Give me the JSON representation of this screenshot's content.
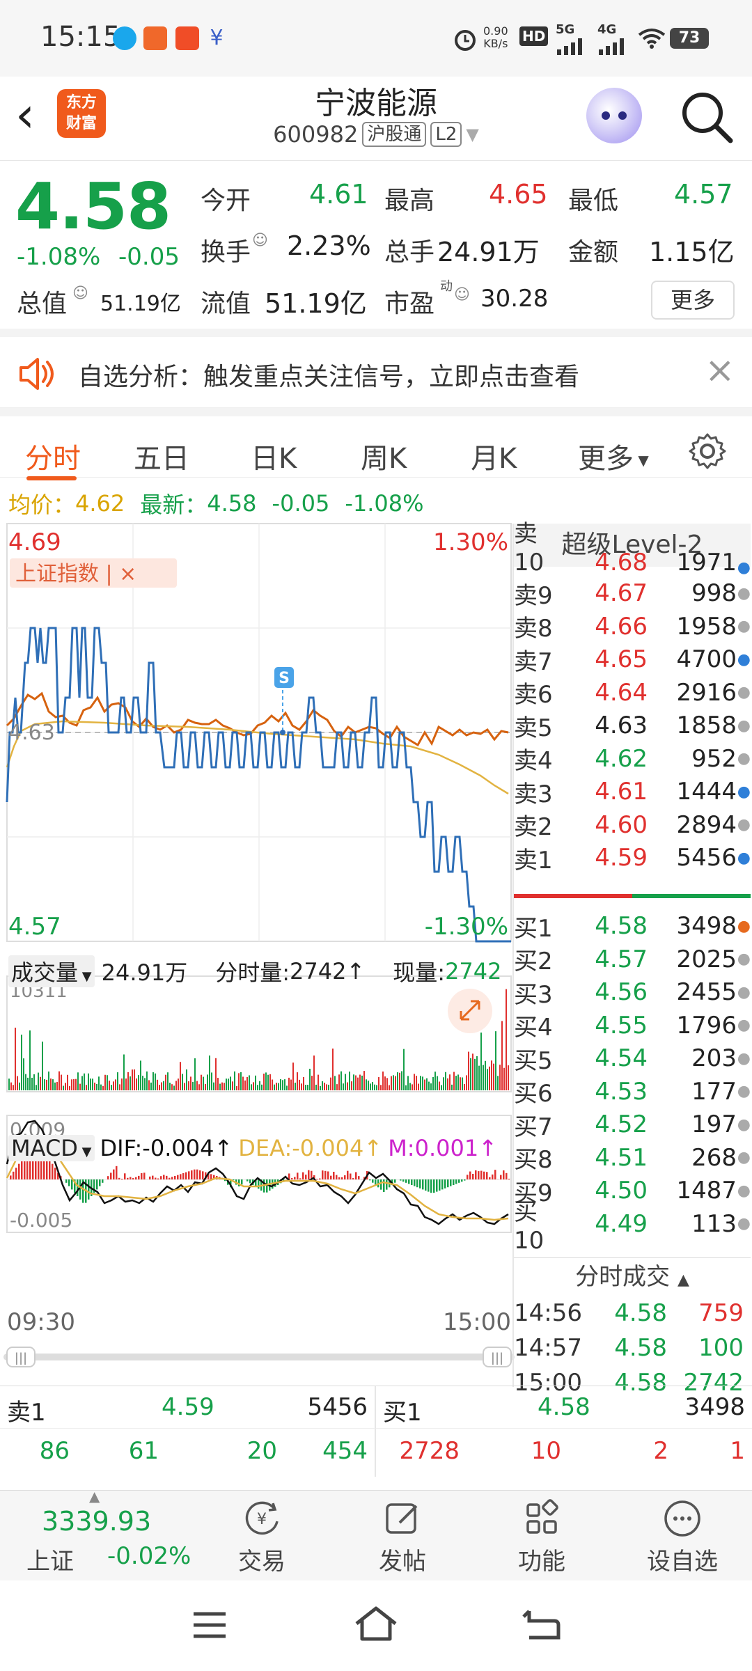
{
  "status_bar": {
    "time": "15:15",
    "net_speed": "0.90\nKB/s",
    "net_speed_top": "0.90",
    "net_speed_bottom": "KB/s",
    "hd": "HD",
    "sig5g": "5G",
    "sig4g": "4G",
    "battery": "73",
    "app_icons": [
      "qq-icon",
      "app-icon-orange",
      "app-icon-red",
      "app-icon-blue"
    ]
  },
  "header": {
    "logo_line1": "东方",
    "logo_line2": "财富",
    "stock_name": "宁波能源",
    "stock_code": "600982",
    "tag_connect": "沪股通",
    "tag_level": "L2"
  },
  "quote": {
    "price": "4.58",
    "change_pct": "-1.08%",
    "change_abs": "-0.05",
    "open_label": "今开",
    "open_value": "4.61",
    "high_label": "最高",
    "high_value": "4.65",
    "low_label": "最低",
    "low_value": "4.57",
    "turnover_label": "换手",
    "turnover_value": "2.23%",
    "total_vol_label": "总手",
    "total_vol_value": "24.91万",
    "amount_label": "金额",
    "amount_value": "1.15亿",
    "mktcap_label": "总值",
    "mktcap_value": "51.19亿",
    "float_label": "流值",
    "float_value": "51.19亿",
    "pe_label": "市盈",
    "pe_sup": "动",
    "pe_value": "30.28",
    "more_label": "更多"
  },
  "notice": {
    "text": "自选分析：触发重点关注信号，立即点击查看"
  },
  "tabs": [
    "分时",
    "五日",
    "日K",
    "周K",
    "月K",
    "更多"
  ],
  "avg_row": {
    "avg_label": "均价：",
    "avg_value": "4.62",
    "latest_label": "最新：",
    "latest_value": "4.58",
    "chg": "-0.05",
    "pct": "-1.08%"
  },
  "chart": {
    "y_top": "4.69",
    "y_mid": "4.63",
    "y_bottom": "4.57",
    "pct_top": "1.30%",
    "pct_bottom": "-1.30%",
    "index_tag": "上证指数 | ×",
    "marker": "S",
    "time_start": "09:30",
    "time_end": "15:00"
  },
  "volume": {
    "label": "成交量",
    "total": "24.91万",
    "minute_label": "分时量:",
    "minute_value": "2742↑",
    "current_label": "现量:",
    "current_value": "2742",
    "max": "10311"
  },
  "macd": {
    "label": "MACD",
    "dif": "DIF:-0.004↑",
    "dea": "DEA:-0.004↑",
    "m": "M:0.001↑",
    "y_top": "0.009",
    "y_bottom": "-0.005"
  },
  "level2": {
    "title": "超级Level-2",
    "sell_top_partial": {
      "label": "卖10",
      "price": "4.68",
      "vol": "1971"
    },
    "sells": [
      {
        "label": "卖9",
        "price": "4.67",
        "vol": "998",
        "dot": "gray"
      },
      {
        "label": "卖8",
        "price": "4.66",
        "vol": "1958",
        "dot": "gray"
      },
      {
        "label": "卖7",
        "price": "4.65",
        "vol": "4700",
        "dot": "blue"
      },
      {
        "label": "卖6",
        "price": "4.64",
        "vol": "2916",
        "dot": "gray"
      },
      {
        "label": "卖5",
        "price": "4.63",
        "vol": "1858",
        "dot": "gray"
      },
      {
        "label": "卖4",
        "price": "4.62",
        "vol": "952",
        "dot": "gray"
      },
      {
        "label": "卖3",
        "price": "4.61",
        "vol": "1444",
        "dot": "blue"
      },
      {
        "label": "卖2",
        "price": "4.60",
        "vol": "2894",
        "dot": "gray"
      },
      {
        "label": "卖1",
        "price": "4.59",
        "vol": "5456",
        "dot": "blue"
      }
    ],
    "buys": [
      {
        "label": "买1",
        "price": "4.58",
        "vol": "3498",
        "dot": "orange"
      },
      {
        "label": "买2",
        "price": "4.57",
        "vol": "2025",
        "dot": "gray"
      },
      {
        "label": "买3",
        "price": "4.56",
        "vol": "2455",
        "dot": "gray"
      },
      {
        "label": "买4",
        "price": "4.55",
        "vol": "1796",
        "dot": "gray"
      },
      {
        "label": "买5",
        "price": "4.54",
        "vol": "203",
        "dot": "gray"
      },
      {
        "label": "买6",
        "price": "4.53",
        "vol": "177",
        "dot": "gray"
      },
      {
        "label": "买7",
        "price": "4.52",
        "vol": "197",
        "dot": "gray"
      },
      {
        "label": "买8",
        "price": "4.51",
        "vol": "268",
        "dot": "gray"
      },
      {
        "label": "买9",
        "price": "4.50",
        "vol": "1487",
        "dot": "gray"
      },
      {
        "label": "买10",
        "price": "4.49",
        "vol": "113",
        "dot": "gray"
      }
    ],
    "trades_title": "分时成交",
    "trades": [
      {
        "time": "14:56",
        "price": "4.58",
        "vol": "759",
        "color": "red"
      },
      {
        "time": "14:57",
        "price": "4.58",
        "vol": "100",
        "color": "green"
      },
      {
        "time": "15:00",
        "price": "4.58",
        "vol": "2742",
        "color": "green"
      }
    ]
  },
  "bottom_strip": {
    "sell_label": "卖1",
    "sell_price": "4.59",
    "sell_vol": "5456",
    "buy_label": "买1",
    "buy_price": "4.58",
    "buy_vol": "3498",
    "sell_details": [
      "86",
      "61",
      "20",
      "454"
    ],
    "buy_details": [
      "2728",
      "10",
      "2",
      "1"
    ]
  },
  "nav": {
    "index_value": "3339.93",
    "index_name": "上证",
    "index_change": "-0.02%",
    "items": [
      "交易",
      "发帖",
      "功能",
      "设自选"
    ]
  }
}
